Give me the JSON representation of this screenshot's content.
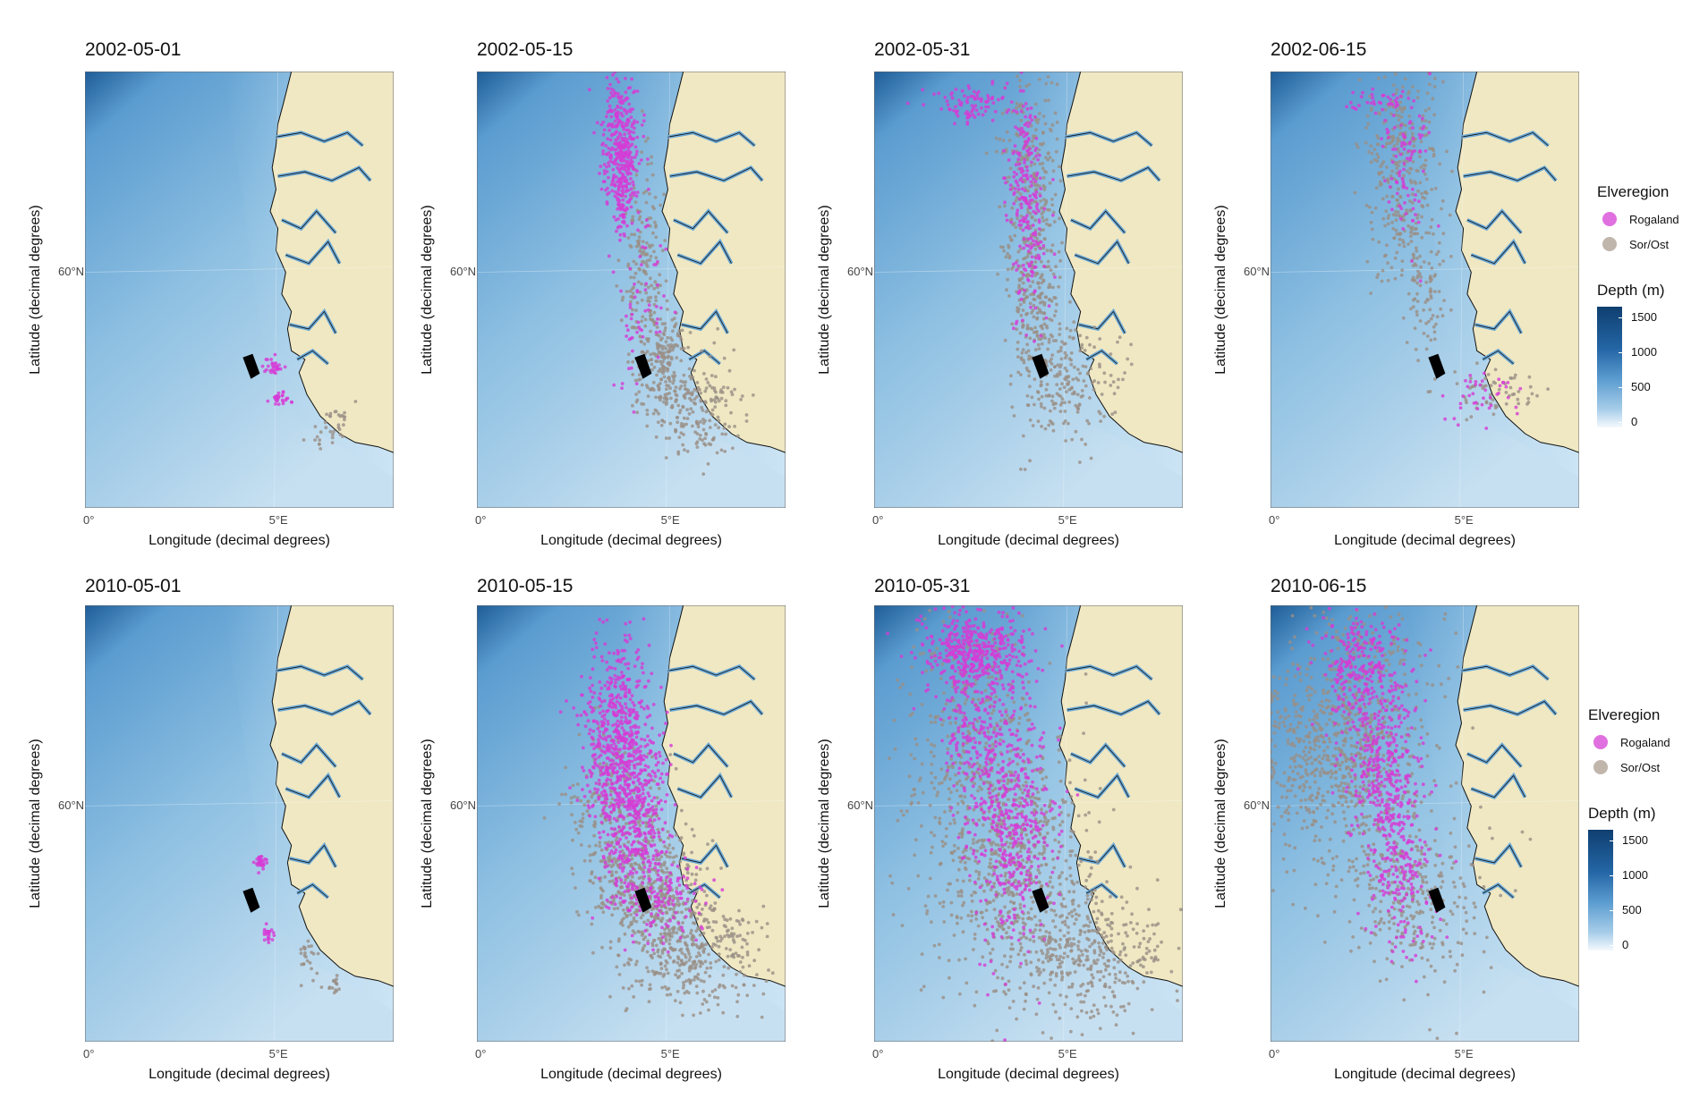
{
  "panels": [
    {
      "title": "2002-05-01",
      "ylabel": "Latitude (decimal degrees)",
      "xlabel": "Longitude (decimal degrees)",
      "lat_tick": "60°N",
      "lon_ticks": [
        "0°",
        "5°E"
      ],
      "seed": 11,
      "rog_groups": [
        [
          4.9,
          58.92,
          0.12,
          0.05,
          30
        ],
        [
          5.05,
          58.55,
          0.14,
          0.04,
          28
        ]
      ],
      "sor_groups": [
        [
          6.3,
          58.15,
          0.25,
          0.1,
          22
        ],
        [
          6.55,
          58.4,
          0.2,
          0.06,
          14
        ]
      ],
      "vessel": "black"
    },
    {
      "title": "2002-05-15",
      "ylabel": "Latitude (decimal degrees)",
      "xlabel": "Longitude (decimal degrees)",
      "lat_tick": "60°N",
      "lon_ticks": [
        "0°",
        "5°E"
      ],
      "seed": 23,
      "rog_groups": [
        [
          3.7,
          61.55,
          0.25,
          0.35,
          260
        ],
        [
          3.8,
          61.0,
          0.2,
          0.3,
          160
        ],
        [
          4.3,
          59.6,
          0.3,
          0.6,
          60
        ]
      ],
      "sor_groups": [
        [
          4.3,
          60.0,
          0.25,
          0.6,
          180
        ],
        [
          4.8,
          59.0,
          0.3,
          0.3,
          180
        ],
        [
          5.6,
          58.4,
          0.6,
          0.3,
          200
        ]
      ],
      "vessel": "black"
    },
    {
      "title": "2002-05-31",
      "ylabel": "Latitude (decimal degrees)",
      "xlabel": "Longitude (decimal degrees)",
      "lat_tick": "60°N",
      "lon_ticks": [
        "0°",
        "5°E"
      ],
      "seed": 37,
      "rog_groups": [
        [
          2.5,
          61.92,
          0.5,
          0.1,
          90
        ],
        [
          3.9,
          61.2,
          0.2,
          0.5,
          140
        ],
        [
          4.0,
          60.2,
          0.25,
          0.5,
          100
        ]
      ],
      "sor_groups": [
        [
          4.0,
          61.0,
          0.35,
          0.9,
          320
        ],
        [
          4.3,
          59.5,
          0.35,
          0.6,
          200
        ],
        [
          5.2,
          58.7,
          0.6,
          0.35,
          160
        ]
      ],
      "vessel": "black"
    },
    {
      "title": "2002-06-15",
      "ylabel": "Latitude (decimal degrees)",
      "xlabel": "Longitude (decimal degrees)",
      "lat_tick": "60°N",
      "lon_ticks": [
        "0°",
        "5°E"
      ],
      "seed": 41,
      "rog_groups": [
        [
          2.9,
          61.95,
          0.4,
          0.07,
          40
        ],
        [
          3.5,
          61.3,
          0.3,
          0.5,
          90
        ],
        [
          5.5,
          58.6,
          0.5,
          0.15,
          40
        ]
      ],
      "sor_groups": [
        [
          3.4,
          61.2,
          0.5,
          0.7,
          330
        ],
        [
          4.0,
          60.0,
          0.3,
          0.6,
          90
        ],
        [
          5.7,
          58.6,
          0.6,
          0.15,
          60
        ]
      ],
      "vessel": "black"
    },
    {
      "title": "2010-05-01",
      "ylabel": "Latitude (decimal degrees)",
      "xlabel": "Longitude (decimal degrees)",
      "lat_tick": "60°N",
      "lon_ticks": [
        "0°",
        "5°E"
      ],
      "seed": 53,
      "rog_groups": [
        [
          4.55,
          59.35,
          0.08,
          0.05,
          30
        ],
        [
          4.75,
          58.55,
          0.08,
          0.04,
          22
        ]
      ],
      "sor_groups": [
        [
          5.8,
          58.3,
          0.15,
          0.15,
          24
        ],
        [
          6.45,
          57.95,
          0.12,
          0.05,
          16
        ]
      ],
      "vessel": "black"
    },
    {
      "title": "2010-05-15",
      "ylabel": "Latitude (decimal degrees)",
      "xlabel": "Longitude (decimal degrees)",
      "lat_tick": "60°N",
      "lon_ticks": [
        "0°",
        "5°E"
      ],
      "seed": 67,
      "rog_groups": [
        [
          3.7,
          60.7,
          0.45,
          0.6,
          700
        ],
        [
          4.2,
          59.7,
          0.4,
          0.5,
          300
        ],
        [
          4.9,
          58.9,
          0.5,
          0.2,
          120
        ]
      ],
      "sor_groups": [
        [
          3.5,
          59.8,
          0.6,
          0.5,
          250
        ],
        [
          4.5,
          59.0,
          0.7,
          0.35,
          400
        ],
        [
          5.7,
          58.3,
          0.9,
          0.3,
          350
        ]
      ],
      "vessel": "black"
    },
    {
      "title": "2010-05-31",
      "ylabel": "Latitude (decimal degrees)",
      "xlabel": "Longitude (decimal degrees)",
      "lat_tick": "60°N",
      "lon_ticks": [
        "0°",
        "5°E"
      ],
      "seed": 79,
      "rog_groups": [
        [
          2.6,
          61.8,
          0.7,
          0.2,
          400
        ],
        [
          2.6,
          60.9,
          0.4,
          0.6,
          250
        ],
        [
          3.6,
          59.8,
          0.5,
          0.7,
          450
        ]
      ],
      "sor_groups": [
        [
          2.5,
          60.4,
          1.0,
          1.0,
          500
        ],
        [
          3.8,
          59.3,
          0.8,
          0.7,
          450
        ],
        [
          5.5,
          58.3,
          1.0,
          0.4,
          400
        ]
      ],
      "vessel": "black"
    },
    {
      "title": "2010-06-15",
      "ylabel": "Latitude (decimal degrees)",
      "xlabel": "Longitude (decimal degrees)",
      "lat_tick": "60°N",
      "lon_ticks": [
        "0°",
        "5°E"
      ],
      "seed": 97,
      "rog_groups": [
        [
          2.3,
          61.6,
          0.5,
          0.35,
          250
        ],
        [
          2.9,
          60.5,
          0.5,
          0.6,
          350
        ],
        [
          3.4,
          59.3,
          0.4,
          0.5,
          200
        ]
      ],
      "sor_groups": [
        [
          1.0,
          60.6,
          1.0,
          0.6,
          450
        ],
        [
          2.5,
          60.8,
          0.9,
          1.0,
          500
        ],
        [
          4.0,
          58.9,
          0.9,
          0.5,
          250
        ]
      ],
      "vessel": "black"
    }
  ],
  "legends": [
    {
      "color_title": "Elveregion",
      "items": [
        {
          "label": "Rogaland",
          "color": "#e070e0"
        },
        {
          "label": "Sor/Ost",
          "color": "#c0b6ac"
        }
      ],
      "depth_title": "Depth (m)",
      "depth_ticks": [
        "1500",
        "1000",
        "500",
        "0"
      ]
    },
    {
      "color_title": "Elveregion",
      "items": [
        {
          "label": "Rogaland",
          "color": "#e070e0"
        },
        {
          "label": "Sor/Ost",
          "color": "#c0b6ac"
        }
      ],
      "depth_title": "Depth (m)",
      "depth_ticks": [
        "1500",
        "1000",
        "500",
        "0"
      ]
    }
  ],
  "colors": {
    "rogaland": "#d63bd6",
    "sorost": "#9a8f86",
    "land": "#efe8c3",
    "coast": "#111111",
    "vessel": "#000000"
  },
  "extent": {
    "lon_min": 0,
    "lon_max": 8,
    "lat_min": 57.3,
    "lat_max": 62.3
  }
}
